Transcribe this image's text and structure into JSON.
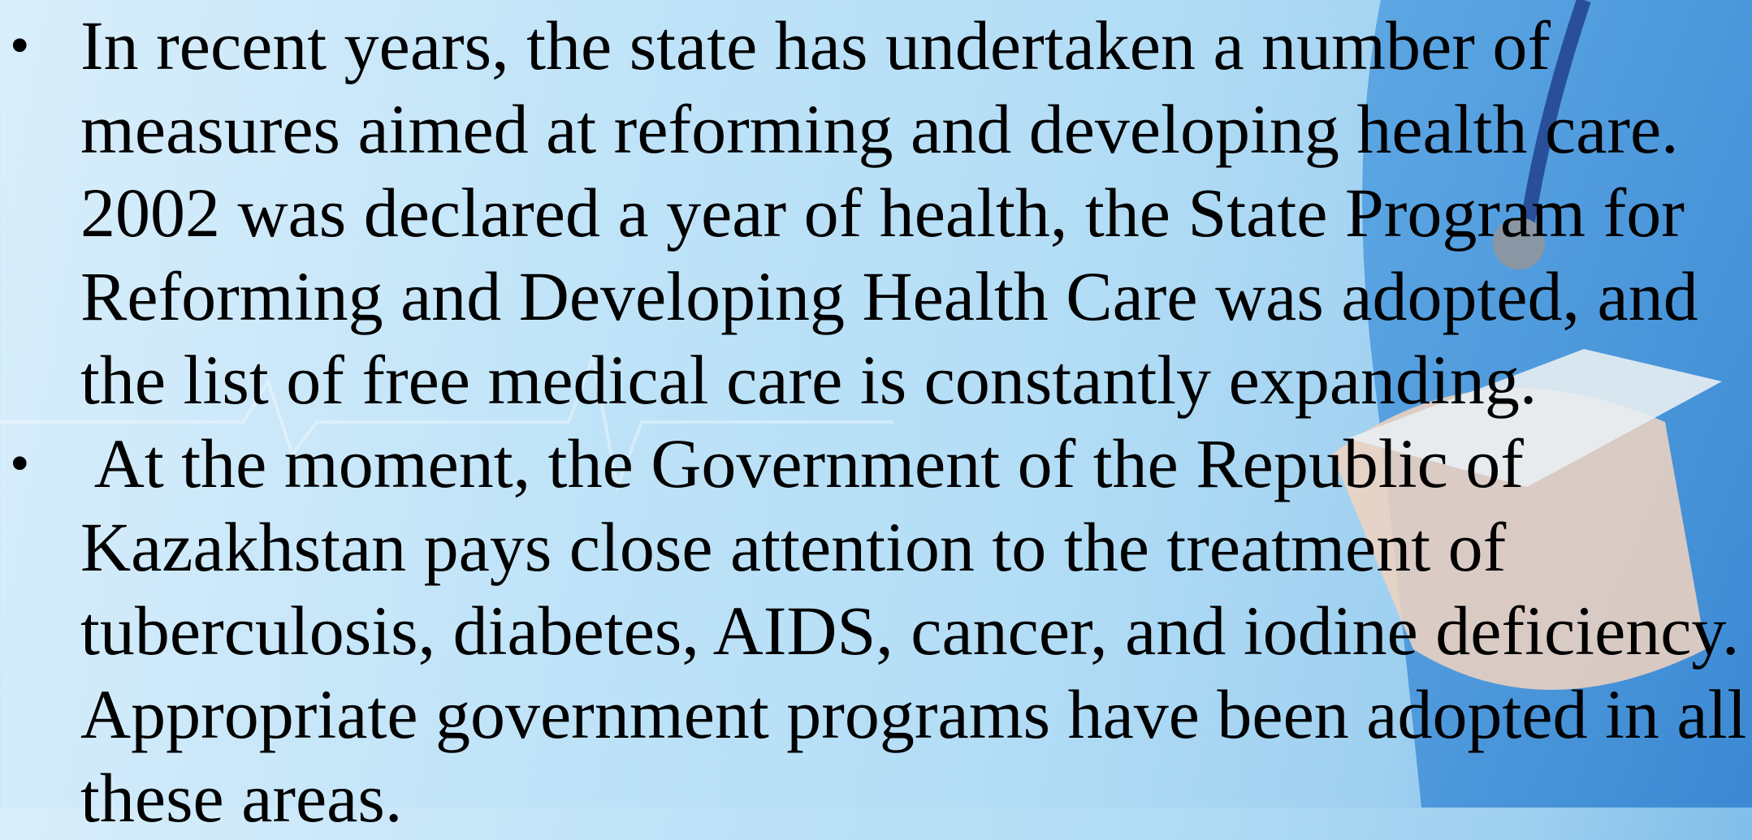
{
  "bullets": [
    {
      "lines": [
        "In recent years, the state has undertaken a number of",
        "measures aimed at reforming and developing health care.",
        "2002 was declared a year of health, the State Program for",
        "Reforming and Developing Health Care was adopted, and",
        "the list of free medical care is constantly expanding."
      ]
    },
    {
      "lines": [
        " At the moment, the Government of the Republic of",
        "Kazakhstan pays close attention to the treatment of",
        "tuberculosis, diabetes, AIDS, cancer, and iodine deficiency.",
        "Appropriate government programs have been adopted in all",
        "these areas."
      ]
    }
  ]
}
